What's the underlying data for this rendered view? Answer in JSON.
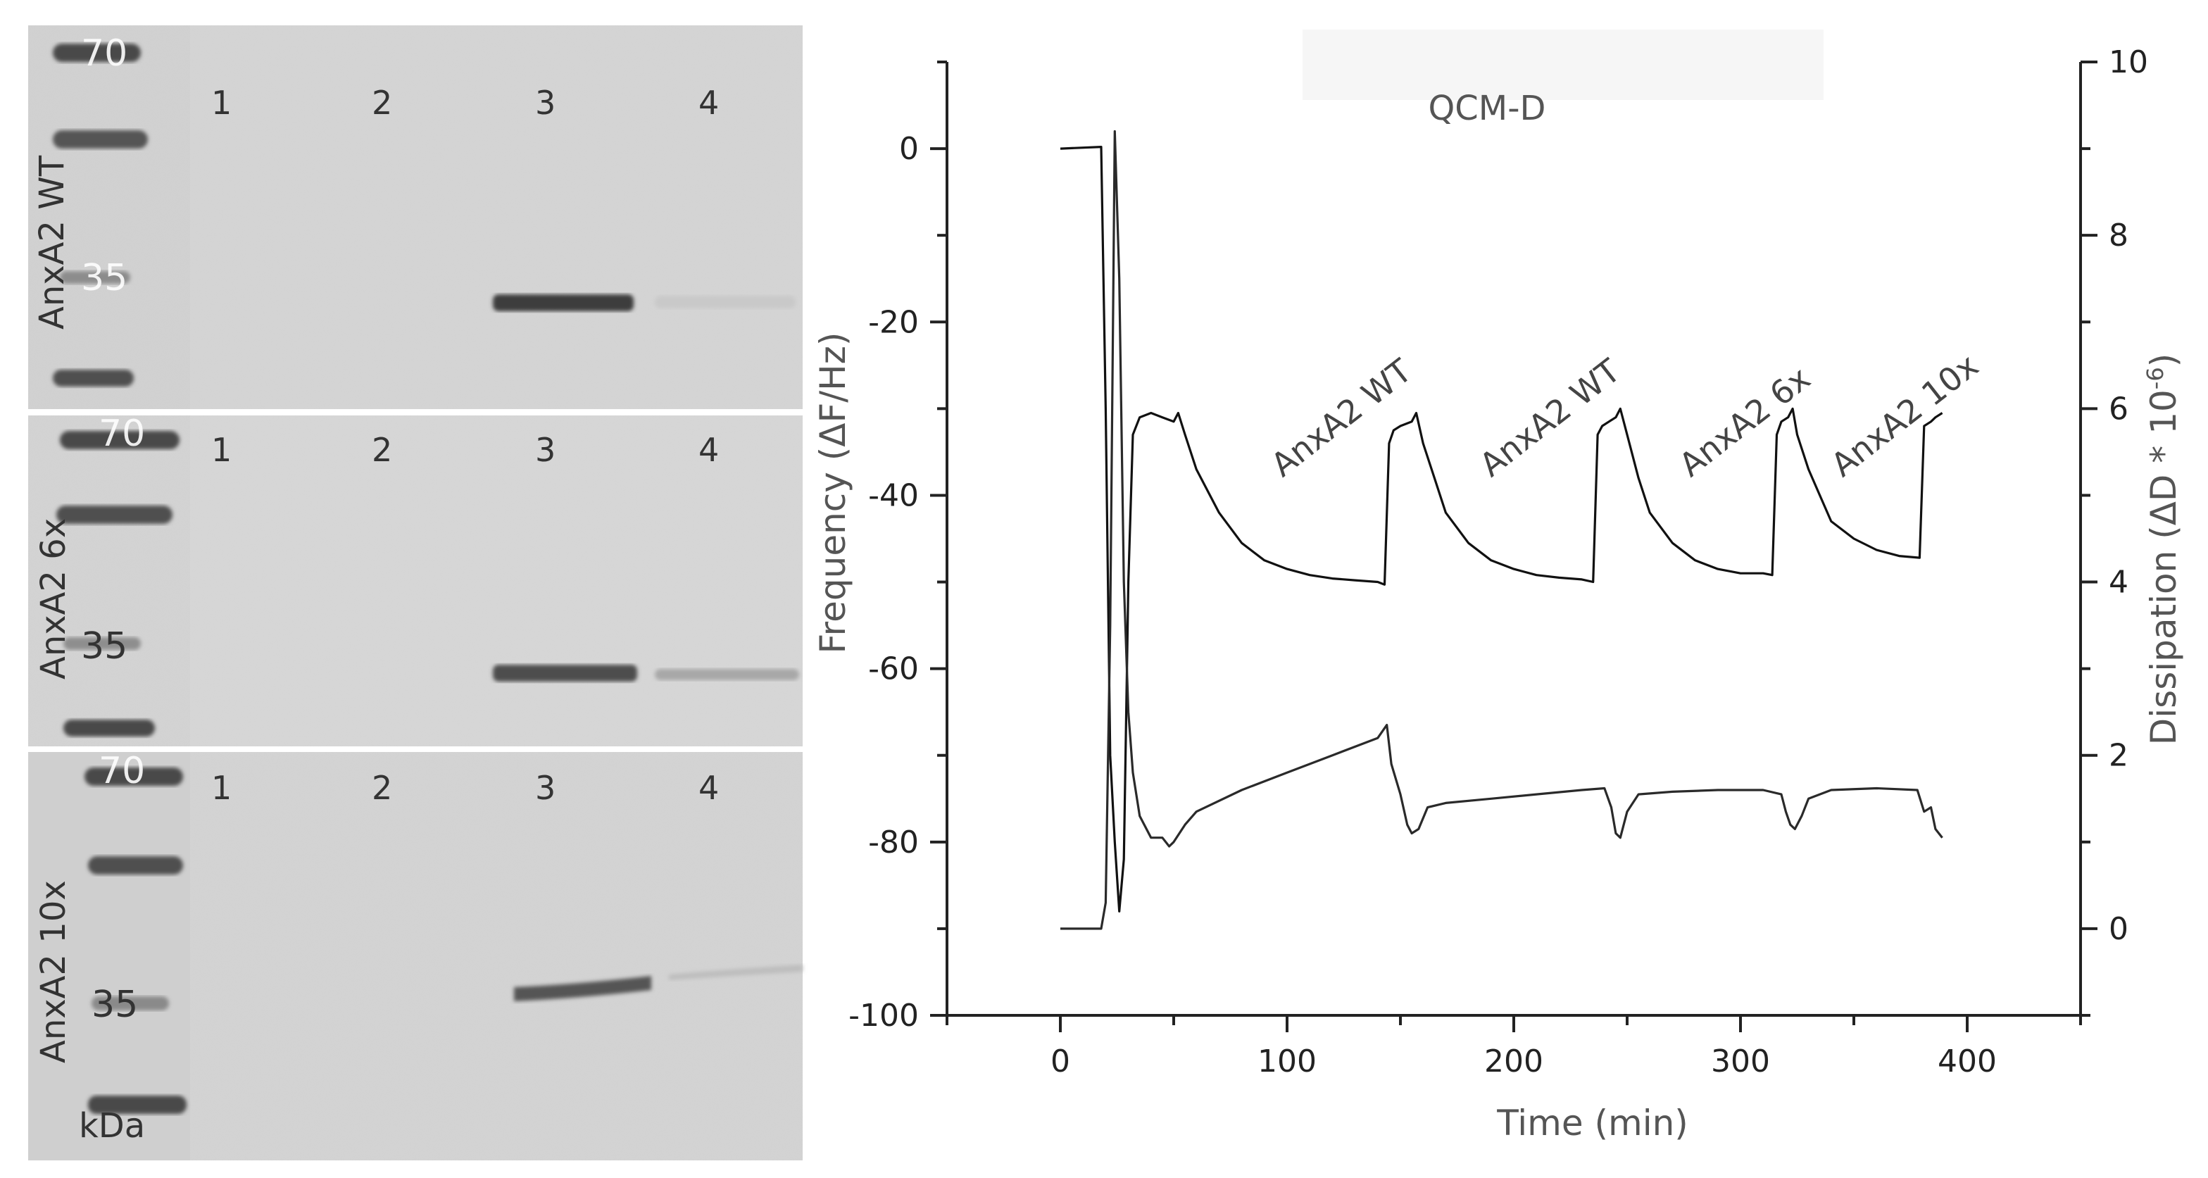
{
  "gel": {
    "unit_label": "kDa",
    "panels": [
      {
        "name": "AnxA2 WT",
        "marker_labels": [
          "70",
          "35"
        ],
        "lanes": [
          "1",
          "2",
          "3",
          "4"
        ],
        "bands": [
          {
            "lane": "3",
            "intensity": 0.88
          },
          {
            "lane": "4",
            "intensity": 0.06
          }
        ]
      },
      {
        "name": "AnxA2 6x",
        "marker_labels": [
          "70",
          "35"
        ],
        "lanes": [
          "1",
          "2",
          "3",
          "4"
        ],
        "bands": [
          {
            "lane": "3",
            "intensity": 0.72
          },
          {
            "lane": "4",
            "intensity": 0.2
          }
        ]
      },
      {
        "name": "AnxA2 10x",
        "marker_labels": [
          "70",
          "35"
        ],
        "lanes": [
          "1",
          "2",
          "3",
          "4"
        ],
        "bands": [
          {
            "lane": "3",
            "intensity": 0.66
          },
          {
            "lane": "4",
            "intensity": 0.12
          }
        ]
      }
    ]
  },
  "chart_data": {
    "type": "line",
    "title": "QCM-D",
    "xlabel": "Time (min)",
    "ylabel": "Frequency (ΔF/Hz)",
    "y2label": "Dissipation (ΔD * 10",
    "y2label_exp": "-6",
    "y2label_tail": ")",
    "xlim": [
      -50,
      450
    ],
    "ylim": [
      -100,
      10
    ],
    "y2lim": [
      -1,
      10
    ],
    "xticks": [
      0,
      100,
      200,
      300,
      400
    ],
    "yticks": [
      0,
      -20,
      -40,
      -60,
      -80,
      -100
    ],
    "y2ticks": [
      0,
      2,
      4,
      6,
      8,
      10
    ],
    "annotations": [
      {
        "text": "AnxA2 WT",
        "x": 98,
        "y": -38
      },
      {
        "text": "AnxA2 WT",
        "x": 190,
        "y": -38
      },
      {
        "text": "AnxA2 6x",
        "x": 278,
        "y": -38
      },
      {
        "text": "AnxA2 10x",
        "x": 345,
        "y": -38
      }
    ],
    "series": [
      {
        "name": "Frequency",
        "axis": "left",
        "x": [
          0,
          18,
          20,
          22,
          24,
          26,
          28,
          30,
          32,
          35,
          40,
          45,
          50,
          52,
          55,
          60,
          70,
          80,
          90,
          100,
          110,
          120,
          130,
          140,
          143,
          145,
          147,
          150,
          155,
          157,
          160,
          165,
          170,
          180,
          190,
          200,
          210,
          220,
          230,
          235,
          237,
          239,
          242,
          245,
          247,
          250,
          255,
          260,
          270,
          280,
          290,
          300,
          310,
          314,
          316,
          318,
          321,
          323,
          325,
          330,
          335,
          340,
          350,
          360,
          370,
          379,
          381,
          384,
          386,
          389
        ],
        "y": [
          0,
          0.2,
          -30,
          -70,
          -80,
          -88,
          -82,
          -50,
          -33,
          -31,
          -30.5,
          -31,
          -31.5,
          -30.5,
          -33,
          -37,
          -42,
          -45.5,
          -47.5,
          -48.5,
          -49.2,
          -49.6,
          -49.8,
          -50,
          -50.3,
          -34,
          -32.5,
          -32,
          -31.5,
          -30.5,
          -34,
          -38,
          -42,
          -45.5,
          -47.5,
          -48.5,
          -49.2,
          -49.5,
          -49.7,
          -50,
          -33,
          -32,
          -31.5,
          -31,
          -30,
          -33,
          -38,
          -42,
          -45.5,
          -47.5,
          -48.5,
          -49,
          -49,
          -49.2,
          -33,
          -31.5,
          -31,
          -30,
          -33,
          -37,
          -40,
          -43,
          -45,
          -46.3,
          -47,
          -47.2,
          -32,
          -31.5,
          -31,
          -30.5
        ]
      },
      {
        "name": "Dissipation",
        "axis": "right",
        "x": [
          0,
          18,
          20,
          22,
          24,
          26,
          28,
          30,
          32,
          35,
          40,
          45,
          48,
          50,
          55,
          60,
          80,
          100,
          120,
          140,
          144,
          146,
          150,
          153,
          155,
          158,
          162,
          170,
          190,
          210,
          230,
          240,
          243,
          245,
          247,
          250,
          255,
          270,
          290,
          310,
          318,
          320,
          322,
          324,
          327,
          330,
          340,
          360,
          378,
          381,
          384,
          386,
          389
        ],
        "y": [
          0,
          0,
          0.3,
          3.5,
          9.2,
          7.5,
          4,
          2.5,
          1.8,
          1.3,
          1.05,
          1.05,
          0.95,
          1.0,
          1.2,
          1.35,
          1.6,
          1.8,
          2.0,
          2.2,
          2.35,
          1.9,
          1.55,
          1.2,
          1.1,
          1.15,
          1.4,
          1.45,
          1.5,
          1.55,
          1.6,
          1.62,
          1.4,
          1.1,
          1.05,
          1.35,
          1.55,
          1.58,
          1.6,
          1.6,
          1.55,
          1.35,
          1.2,
          1.15,
          1.3,
          1.5,
          1.6,
          1.62,
          1.6,
          1.35,
          1.4,
          1.15,
          1.05
        ]
      }
    ]
  }
}
